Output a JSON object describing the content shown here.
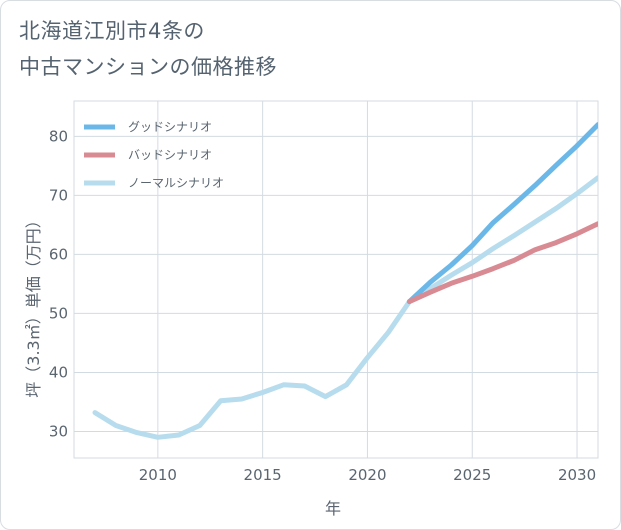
{
  "title": {
    "line1": "北海道江別市4条の",
    "line2": "中古マンションの価格推移"
  },
  "chart_data": {
    "type": "line",
    "xlabel": "年",
    "ylabel": "坪（3.3㎡）単価（万円）",
    "xlim": [
      2006,
      2031
    ],
    "ylim": [
      25.5,
      86
    ],
    "xticks": [
      2010,
      2015,
      2020,
      2025,
      2030
    ],
    "yticks": [
      30,
      40,
      50,
      60,
      70,
      80
    ],
    "grid": true,
    "legend_position": "top-left",
    "series": [
      {
        "name": "ノーマルシナリオ",
        "color": "#b7dced",
        "x": [
          2007,
          2008,
          2009,
          2010,
          2011,
          2012,
          2013,
          2014,
          2015,
          2016,
          2017,
          2018,
          2019,
          2020,
          2021,
          2022,
          2023,
          2024,
          2025,
          2026,
          2027,
          2028,
          2029,
          2030,
          2031
        ],
        "values": [
          33.2,
          31.0,
          29.8,
          29.0,
          29.4,
          31.0,
          35.2,
          35.5,
          36.6,
          37.9,
          37.7,
          35.9,
          37.9,
          42.5,
          46.8,
          52.0,
          54.2,
          56.5,
          58.6,
          61.0,
          63.2,
          65.5,
          67.8,
          70.3,
          73.0
        ]
      },
      {
        "name": "グッドシナリオ",
        "color": "#6bb8e8",
        "x": [
          2022,
          2023,
          2024,
          2025,
          2026,
          2027,
          2028,
          2029,
          2030,
          2031
        ],
        "values": [
          52.0,
          55.3,
          58.2,
          61.5,
          65.4,
          68.5,
          71.7,
          75.1,
          78.4,
          82.0
        ]
      },
      {
        "name": "バッドシナリオ",
        "color": "#d98b93",
        "x": [
          2022,
          2023,
          2024,
          2025,
          2026,
          2027,
          2028,
          2029,
          2030,
          2031
        ],
        "values": [
          52.0,
          53.6,
          55.1,
          56.3,
          57.6,
          59.0,
          60.8,
          62.0,
          63.5,
          65.2
        ]
      }
    ],
    "legend": [
      {
        "name": "グッドシナリオ",
        "color": "#6bb8e8"
      },
      {
        "name": "バッドシナリオ",
        "color": "#d98b93"
      },
      {
        "name": "ノーマルシナリオ",
        "color": "#b7dced"
      }
    ]
  }
}
